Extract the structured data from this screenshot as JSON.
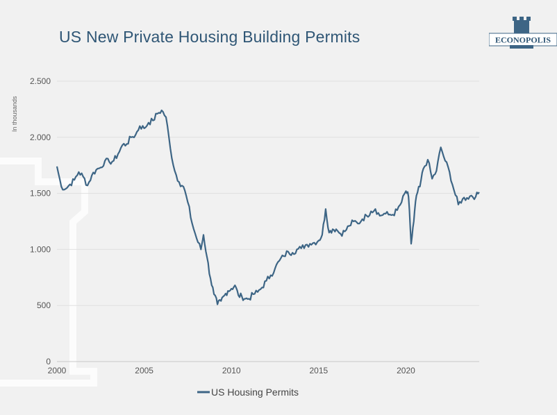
{
  "title": "US New Private Housing Building Permits",
  "logo_text": "ECONOPOLIS",
  "colors": {
    "series": "#3d6585",
    "title": "#2f5675",
    "grid": "#e0e0e0",
    "background": "#f1f1f1"
  },
  "chart_data": {
    "type": "line",
    "title": "US New Private Housing Building Permits",
    "xlabel": "",
    "ylabel": "In thousands",
    "xlim": [
      2000,
      2024.2
    ],
    "ylim": [
      0,
      2500
    ],
    "xticks": [
      2000,
      2005,
      2010,
      2015,
      2020
    ],
    "xtick_labels": [
      "2000",
      "2005",
      "2010",
      "2015",
      "2020"
    ],
    "yticks": [
      0,
      500,
      1000,
      1500,
      2000,
      2500
    ],
    "ytick_labels": [
      "0",
      "500",
      "1.000",
      "1.500",
      "2.000",
      "2.500"
    ],
    "grid": true,
    "legend": "bottom",
    "series": [
      {
        "name": "US Housing Permits",
        "points": [
          [
            2000.0,
            1740
          ],
          [
            2000.25,
            1560
          ],
          [
            2000.5,
            1540
          ],
          [
            2000.75,
            1580
          ],
          [
            2001.0,
            1620
          ],
          [
            2001.25,
            1690
          ],
          [
            2001.5,
            1650
          ],
          [
            2001.75,
            1570
          ],
          [
            2002.0,
            1660
          ],
          [
            2002.25,
            1710
          ],
          [
            2002.5,
            1730
          ],
          [
            2002.75,
            1790
          ],
          [
            2003.0,
            1780
          ],
          [
            2003.25,
            1790
          ],
          [
            2003.5,
            1850
          ],
          [
            2003.75,
            1930
          ],
          [
            2004.0,
            1940
          ],
          [
            2004.25,
            2000
          ],
          [
            2004.5,
            2020
          ],
          [
            2004.75,
            2100
          ],
          [
            2005.0,
            2080
          ],
          [
            2005.25,
            2130
          ],
          [
            2005.5,
            2150
          ],
          [
            2005.75,
            2210
          ],
          [
            2006.0,
            2240
          ],
          [
            2006.25,
            2180
          ],
          [
            2006.5,
            1900
          ],
          [
            2006.75,
            1700
          ],
          [
            2007.0,
            1600
          ],
          [
            2007.25,
            1560
          ],
          [
            2007.5,
            1420
          ],
          [
            2007.75,
            1230
          ],
          [
            2008.0,
            1100
          ],
          [
            2008.25,
            1000
          ],
          [
            2008.4,
            1130
          ],
          [
            2008.6,
            930
          ],
          [
            2008.8,
            740
          ],
          [
            2009.0,
            600
          ],
          [
            2009.2,
            510
          ],
          [
            2009.4,
            540
          ],
          [
            2009.6,
            590
          ],
          [
            2009.8,
            630
          ],
          [
            2010.0,
            650
          ],
          [
            2010.2,
            680
          ],
          [
            2010.4,
            590
          ],
          [
            2010.6,
            580
          ],
          [
            2010.8,
            560
          ],
          [
            2011.0,
            560
          ],
          [
            2011.25,
            600
          ],
          [
            2011.5,
            620
          ],
          [
            2011.75,
            660
          ],
          [
            2012.0,
            720
          ],
          [
            2012.25,
            770
          ],
          [
            2012.5,
            830
          ],
          [
            2012.75,
            900
          ],
          [
            2013.0,
            940
          ],
          [
            2013.25,
            980
          ],
          [
            2013.5,
            970
          ],
          [
            2013.75,
            1000
          ],
          [
            2014.0,
            1010
          ],
          [
            2014.25,
            1040
          ],
          [
            2014.5,
            1050
          ],
          [
            2014.75,
            1060
          ],
          [
            2015.0,
            1080
          ],
          [
            2015.2,
            1130
          ],
          [
            2015.4,
            1360
          ],
          [
            2015.6,
            1150
          ],
          [
            2015.8,
            1180
          ],
          [
            2016.0,
            1180
          ],
          [
            2016.25,
            1140
          ],
          [
            2016.5,
            1160
          ],
          [
            2016.75,
            1210
          ],
          [
            2017.0,
            1250
          ],
          [
            2017.25,
            1230
          ],
          [
            2017.5,
            1270
          ],
          [
            2017.75,
            1300
          ],
          [
            2018.0,
            1340
          ],
          [
            2018.25,
            1360
          ],
          [
            2018.5,
            1300
          ],
          [
            2018.75,
            1320
          ],
          [
            2019.0,
            1310
          ],
          [
            2019.25,
            1310
          ],
          [
            2019.5,
            1350
          ],
          [
            2019.75,
            1420
          ],
          [
            2020.0,
            1520
          ],
          [
            2020.15,
            1470
          ],
          [
            2020.3,
            1050
          ],
          [
            2020.45,
            1250
          ],
          [
            2020.6,
            1480
          ],
          [
            2020.8,
            1560
          ],
          [
            2021.0,
            1720
          ],
          [
            2021.25,
            1800
          ],
          [
            2021.5,
            1630
          ],
          [
            2021.75,
            1700
          ],
          [
            2022.0,
            1910
          ],
          [
            2022.25,
            1790
          ],
          [
            2022.5,
            1690
          ],
          [
            2022.75,
            1530
          ],
          [
            2023.0,
            1400
          ],
          [
            2023.25,
            1450
          ],
          [
            2023.5,
            1460
          ],
          [
            2023.75,
            1480
          ],
          [
            2024.0,
            1470
          ],
          [
            2024.2,
            1510
          ]
        ]
      }
    ]
  }
}
